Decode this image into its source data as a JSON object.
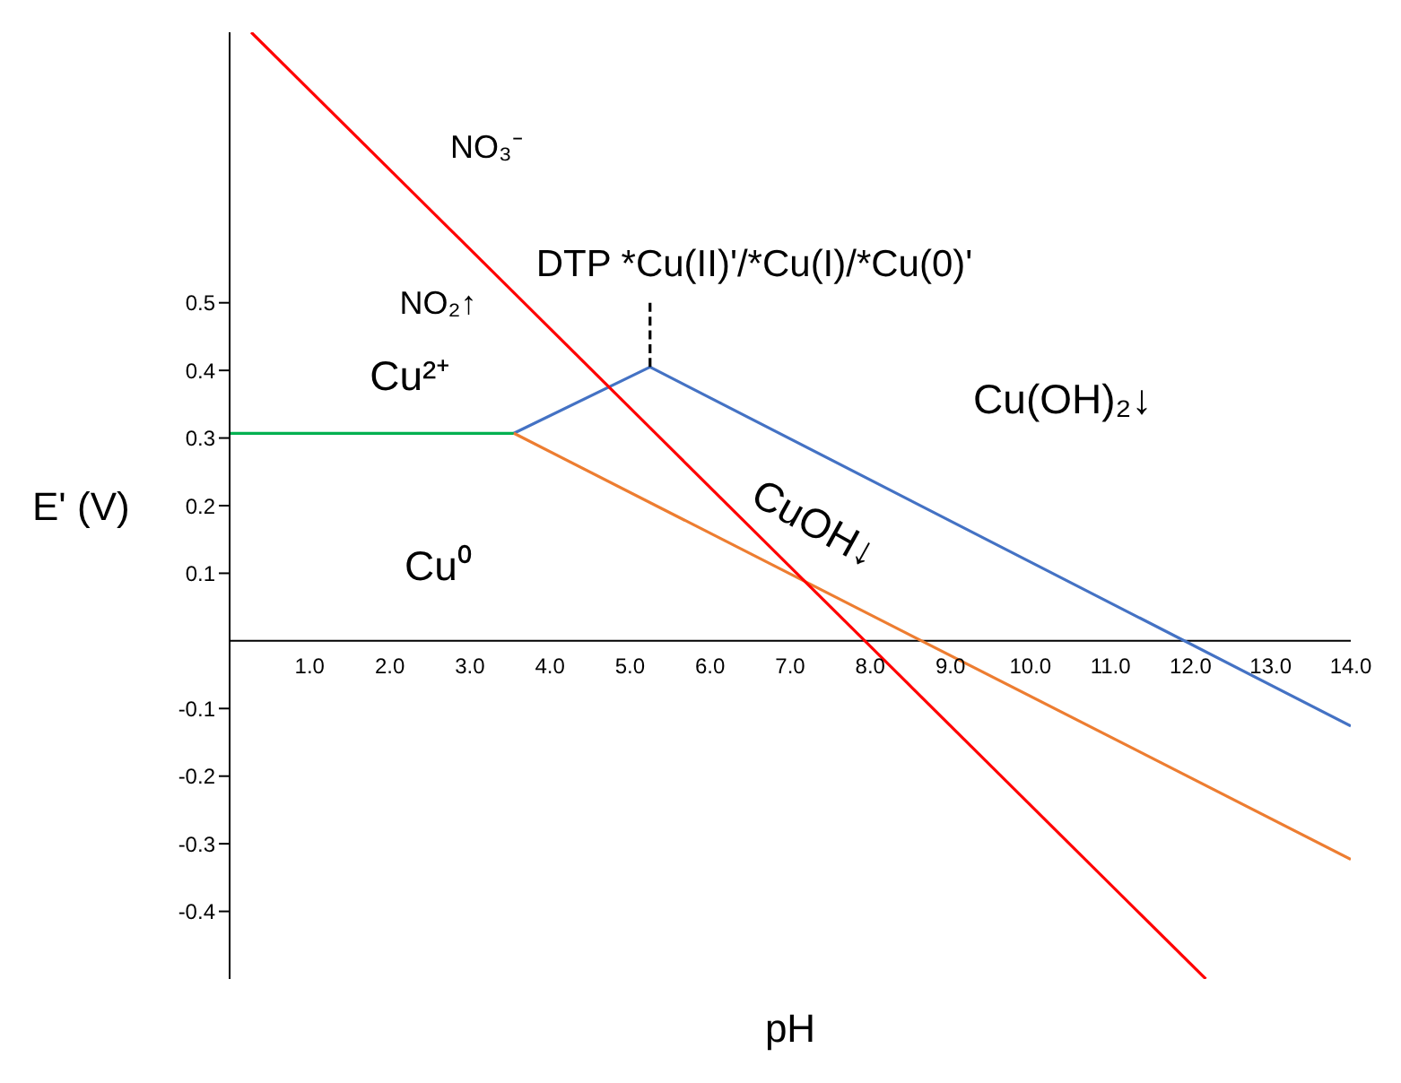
{
  "chart_data": {
    "type": "line",
    "title": "DTP *Cu(II)'/*Cu(I)/*Cu(0)'",
    "xlabel": "pH",
    "ylabel": "E' (V)",
    "xlim": [
      0,
      14
    ],
    "xticks": [
      {
        "value": 1,
        "label": "1.0"
      },
      {
        "value": 2,
        "label": "2.0"
      },
      {
        "value": 3,
        "label": "3.0"
      },
      {
        "value": 4,
        "label": "4.0"
      },
      {
        "value": 5,
        "label": "5.0"
      },
      {
        "value": 6,
        "label": "6.0"
      },
      {
        "value": 7,
        "label": "7.0"
      },
      {
        "value": 8,
        "label": "8.0"
      },
      {
        "value": 9,
        "label": "9.0"
      },
      {
        "value": 10,
        "label": "10.0"
      },
      {
        "value": 11,
        "label": "11.0"
      },
      {
        "value": 12,
        "label": "12.0"
      },
      {
        "value": 13,
        "label": "13.0"
      },
      {
        "value": 14,
        "label": "14.0"
      }
    ],
    "ylim": [
      -0.5,
      0.9
    ],
    "yticks": [
      -0.4,
      -0.3,
      -0.2,
      -0.1,
      0.1,
      0.2,
      0.3,
      0.4,
      0.5
    ],
    "marker": "none",
    "series": [
      {
        "color": "#00b050",
        "x": [
          0,
          3.55
        ],
        "values": [
          0.307,
          0.307
        ]
      },
      {
        "color": "#4472c4",
        "x": [
          3.55,
          5.25,
          14
        ],
        "values": [
          0.307,
          0.405,
          -0.126
        ]
      },
      {
        "color": "#ed7d31",
        "x": [
          3.55,
          14
        ],
        "values": [
          0.307,
          -0.323
        ]
      },
      {
        "color": "#ff0000",
        "x": [
          0.27,
          12.19
        ],
        "values": [
          0.9,
          -0.5
        ]
      },
      {
        "color": "#000000",
        "x": [
          5.25,
          5.25
        ],
        "values": [
          0.405,
          0.5
        ],
        "line_style": "dashed"
      }
    ],
    "annotations": [
      "NO₃⁻",
      "NO₂↑",
      "Cu²⁺",
      "Cu⁰",
      "CuOH↓",
      "Cu(OH)₂↓"
    ]
  }
}
